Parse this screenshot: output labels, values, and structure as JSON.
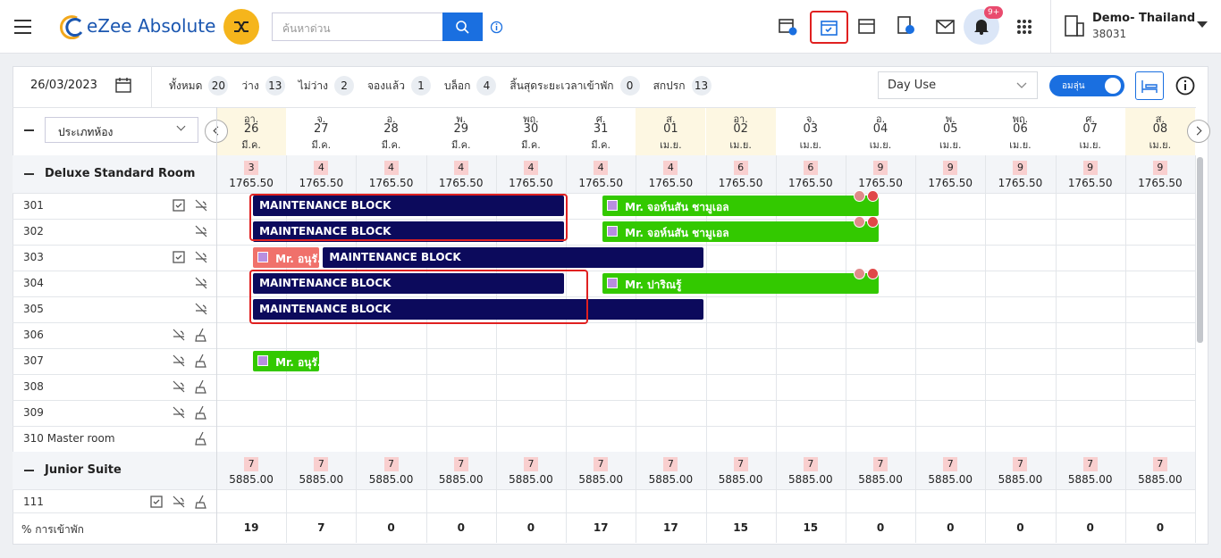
{
  "header": {
    "logo": "eZee Absolute",
    "search_placeholder": "ค้นหาด่วน",
    "notification_badge": "9+",
    "property_name": "Demo- Thailand",
    "property_id": "38031"
  },
  "toolbar": {
    "date": "26/03/2023",
    "stats": [
      {
        "label": "ทั้งหมด",
        "count": 20
      },
      {
        "label": "ว่าง",
        "count": 13
      },
      {
        "label": "ไม่ว่าง",
        "count": 2
      },
      {
        "label": "จองแล้ว",
        "count": 1
      },
      {
        "label": "บล็อก",
        "count": 4
      },
      {
        "label": "สิ้นสุดระยะเวลาเข้าพัก",
        "count": 0
      },
      {
        "label": "สกปรก",
        "count": 13
      }
    ],
    "view": "Day Use",
    "toggle": "อมลุ่น"
  },
  "calendar": {
    "room_type_select": "ประเภทห้อง",
    "dates": [
      {
        "day": "อา.",
        "date": "26",
        "month": "มี.ค.",
        "weekend": true
      },
      {
        "day": "จ.",
        "date": "27",
        "month": "มี.ค.",
        "weekend": false
      },
      {
        "day": "อ.",
        "date": "28",
        "month": "มี.ค.",
        "weekend": false
      },
      {
        "day": "พ.",
        "date": "29",
        "month": "มี.ค.",
        "weekend": false
      },
      {
        "day": "พฤ.",
        "date": "30",
        "month": "มี.ค.",
        "weekend": false
      },
      {
        "day": "ศ.",
        "date": "31",
        "month": "มี.ค.",
        "weekend": false
      },
      {
        "day": "ส.",
        "date": "01",
        "month": "เม.ย.",
        "weekend": true
      },
      {
        "day": "อา.",
        "date": "02",
        "month": "เม.ย.",
        "weekend": true
      },
      {
        "day": "จ.",
        "date": "03",
        "month": "เม.ย.",
        "weekend": false
      },
      {
        "day": "อ.",
        "date": "04",
        "month": "เม.ย.",
        "weekend": false
      },
      {
        "day": "พ.",
        "date": "05",
        "month": "เม.ย.",
        "weekend": false
      },
      {
        "day": "พฤ.",
        "date": "06",
        "month": "เม.ย.",
        "weekend": false
      },
      {
        "day": "ศ.",
        "date": "07",
        "month": "เม.ย.",
        "weekend": false
      },
      {
        "day": "ส.",
        "date": "08",
        "month": "เม.ย.",
        "weekend": true
      }
    ],
    "groups": [
      {
        "name": "Deluxe Standard Room",
        "availability": [
          3,
          4,
          4,
          4,
          4,
          4,
          4,
          6,
          6,
          9,
          9,
          9,
          9,
          9
        ],
        "rates": [
          "1765.50",
          "1765.50",
          "1765.50",
          "1765.50",
          "1765.50",
          "1765.50",
          "1765.50",
          "1765.50",
          "1765.50",
          "1765.50",
          "1765.50",
          "1765.50",
          "1765.50",
          "1765.50"
        ],
        "rooms": [
          {
            "name": "301",
            "bookings": [
              {
                "label": "MAINTENANCE BLOCK",
                "color": "#0c0a5c"
              },
              {
                "label": "Mr. จอห์นสัน ชามูเอล",
                "color": "#33c900"
              }
            ]
          },
          {
            "name": "302",
            "bookings": [
              {
                "label": "MAINTENANCE BLOCK",
                "color": "#0c0a5c"
              },
              {
                "label": "Mr. จอห์นสัน ชามูเอล",
                "color": "#33c900"
              }
            ]
          },
          {
            "name": "303",
            "bookings": [
              {
                "label": "Mr. อนุรั...",
                "color": "#f0716b"
              },
              {
                "label": "MAINTENANCE BLOCK",
                "color": "#0c0a5c"
              }
            ]
          },
          {
            "name": "304",
            "bookings": [
              {
                "label": "MAINTENANCE BLOCK",
                "color": "#0c0a5c"
              },
              {
                "label": "Mr. ปาริณรู้",
                "color": "#33c900"
              }
            ]
          },
          {
            "name": "305",
            "bookings": [
              {
                "label": "MAINTENANCE BLOCK",
                "color": "#0c0a5c"
              }
            ]
          },
          {
            "name": "306",
            "bookings": []
          },
          {
            "name": "307",
            "bookings": [
              {
                "label": "Mr. อนุรั...",
                "color": "#33c900"
              }
            ]
          },
          {
            "name": "308",
            "bookings": []
          },
          {
            "name": "309",
            "bookings": []
          },
          {
            "name": "310 Master room",
            "bookings": []
          }
        ]
      },
      {
        "name": "Junior Suite",
        "availability": [
          7,
          7,
          7,
          7,
          7,
          7,
          7,
          7,
          7,
          7,
          7,
          7,
          7,
          7
        ],
        "rates": [
          "5885.00",
          "5885.00",
          "5885.00",
          "5885.00",
          "5885.00",
          "5885.00",
          "5885.00",
          "5885.00",
          "5885.00",
          "5885.00",
          "5885.00",
          "5885.00",
          "5885.00",
          "5885.00"
        ],
        "rooms": [
          {
            "name": "111",
            "bookings": []
          }
        ]
      }
    ],
    "occupancy": {
      "label": "% การเข้าพัก",
      "values": [
        19,
        7,
        0,
        0,
        0,
        17,
        17,
        15,
        15,
        0,
        0,
        0,
        0,
        0
      ]
    }
  }
}
